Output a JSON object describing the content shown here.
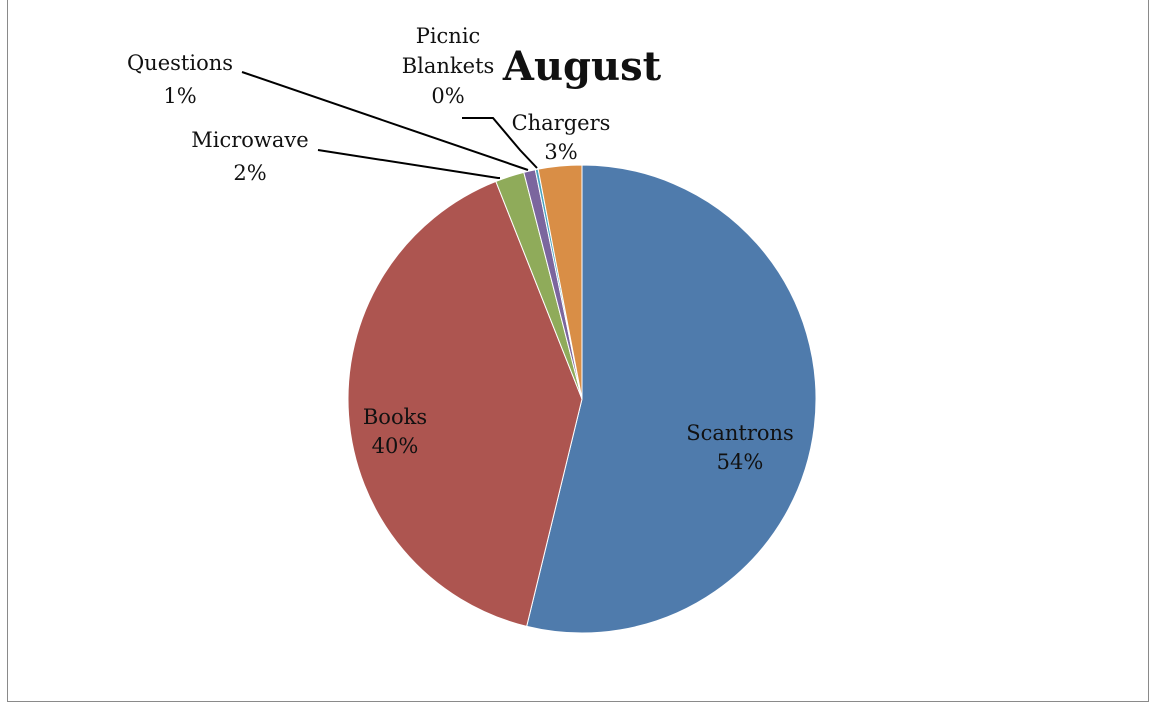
{
  "chart_data": {
    "type": "pie",
    "title": "August",
    "start_angle_deg": 0,
    "direction": "clockwise",
    "slices": [
      {
        "name": "Scantrons",
        "percent_label": "54%",
        "value": 53.8,
        "color": "#4f7bac",
        "label_style": "inside"
      },
      {
        "name": "Books",
        "percent_label": "40%",
        "value": 40.2,
        "color": "#ad5550",
        "label_style": "inside"
      },
      {
        "name": "Microwave",
        "percent_label": "2%",
        "value": 2.0,
        "color": "#8fab5a",
        "label_style": "outside"
      },
      {
        "name": "Questions",
        "percent_label": "1%",
        "value": 0.8,
        "color": "#7b669e",
        "label_style": "outside"
      },
      {
        "name": "Picnic Blankets",
        "percent_label": "0%",
        "value": 0.2,
        "color": "#4aa3bf",
        "label_style": "outside"
      },
      {
        "name": "Chargers",
        "percent_label": "3%",
        "value": 3.0,
        "color": "#d98e46",
        "label_style": "outside"
      }
    ]
  }
}
